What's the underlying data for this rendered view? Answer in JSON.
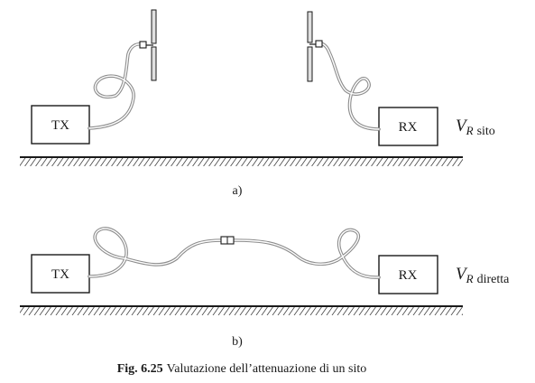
{
  "scene_a": {
    "tx_label": "TX",
    "rx_label": "RX",
    "v_symbol": "V",
    "v_subscript": "R",
    "v_suffix": "sito",
    "sub_label": "a)"
  },
  "scene_b": {
    "tx_label": "TX",
    "rx_label": "RX",
    "v_symbol": "V",
    "v_subscript": "R",
    "v_suffix": "diretta",
    "sub_label": "b)"
  },
  "caption": {
    "number": "Fig. 6.25",
    "text": "Valutazione dell’attenuazione di un sito"
  },
  "colors": {
    "ink": "#1a1a1a",
    "cable": "#9a9a9a",
    "antenna_fill": "#e0e0e0"
  }
}
